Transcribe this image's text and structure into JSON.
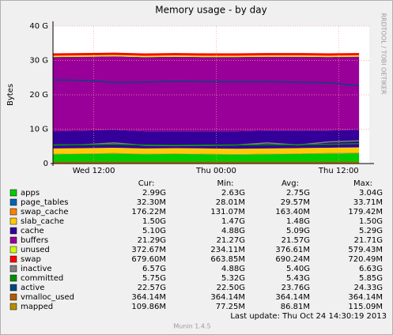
{
  "chart_data": {
    "type": "area",
    "title": "Memory usage - by day",
    "ylabel": "Bytes",
    "side_text": "RRDTOOL / TOBI OETIKER",
    "footer": "Last update:  Thu Oct 24 14:30:19 2013",
    "version": "Munin 1.4.5",
    "x": [
      0,
      3,
      6,
      9,
      12,
      15,
      18,
      21,
      24,
      27,
      30
    ],
    "xlim": [
      0,
      31
    ],
    "xticks": [
      {
        "value": 4,
        "label": "Wed 12:00"
      },
      {
        "value": 16,
        "label": "Thu 00:00"
      },
      {
        "value": 28,
        "label": "Thu 12:00"
      }
    ],
    "ylim": [
      0,
      40
    ],
    "yticks": [
      0,
      {
        "value": 10,
        "label": "10 G"
      },
      {
        "value": 20,
        "label": "20 G"
      },
      {
        "value": 30,
        "label": "30 G"
      },
      {
        "value": 40,
        "label": "40 G"
      }
    ],
    "grid": true,
    "series": [
      {
        "name": "apps",
        "color": "#00cc00",
        "stack": true,
        "values": [
          2.7,
          2.8,
          2.9,
          2.7,
          2.8,
          2.7,
          2.6,
          2.7,
          2.8,
          2.9,
          3.0
        ]
      },
      {
        "name": "page_tables",
        "color": "#0066b3",
        "stack": true,
        "values": [
          0.03,
          0.03,
          0.03,
          0.03,
          0.03,
          0.03,
          0.03,
          0.03,
          0.03,
          0.03,
          0.03
        ]
      },
      {
        "name": "swap_cache",
        "color": "#ff8000",
        "stack": true,
        "values": [
          0.17,
          0.16,
          0.17,
          0.16,
          0.16,
          0.17,
          0.17,
          0.16,
          0.16,
          0.17,
          0.18
        ]
      },
      {
        "name": "slab_cache",
        "color": "#ffcc00",
        "stack": true,
        "values": [
          1.5,
          1.5,
          1.5,
          1.5,
          1.5,
          1.5,
          1.5,
          1.5,
          1.5,
          1.5,
          1.5
        ]
      },
      {
        "name": "cache",
        "color": "#330099",
        "stack": true,
        "values": [
          5.0,
          5.1,
          5.2,
          5.0,
          4.9,
          5.0,
          5.1,
          5.2,
          5.1,
          5.0,
          5.1
        ]
      },
      {
        "name": "buffers",
        "color": "#990099",
        "stack": true,
        "values": [
          21.6,
          21.5,
          21.4,
          21.6,
          21.7,
          21.6,
          21.6,
          21.5,
          21.5,
          21.4,
          21.3
        ]
      },
      {
        "name": "unused",
        "color": "#ccff00",
        "stack": true,
        "values": [
          0.37,
          0.38,
          0.37,
          0.36,
          0.37,
          0.38,
          0.37,
          0.37,
          0.38,
          0.37,
          0.37
        ]
      },
      {
        "name": "swap",
        "color": "#ff0000",
        "stack": true,
        "values": [
          0.69,
          0.69,
          0.69,
          0.69,
          0.69,
          0.69,
          0.69,
          0.69,
          0.69,
          0.69,
          0.68
        ]
      },
      {
        "name": "inactive",
        "color": "#808080",
        "stack": false,
        "values": [
          5.4,
          5.5,
          6.0,
          5.3,
          5.2,
          5.3,
          5.4,
          6.0,
          5.4,
          6.3,
          6.6
        ]
      },
      {
        "name": "committed",
        "color": "#008f00",
        "stack": false,
        "values": [
          5.4,
          5.5,
          5.6,
          5.4,
          5.3,
          5.4,
          5.4,
          5.5,
          5.5,
          5.6,
          5.8
        ]
      },
      {
        "name": "active",
        "color": "#00487d",
        "stack": false,
        "values": [
          24.3,
          24.2,
          23.6,
          23.7,
          23.9,
          23.8,
          23.8,
          23.8,
          23.7,
          23.5,
          22.6
        ]
      },
      {
        "name": "vmalloc_used",
        "color": "#b35a00",
        "stack": false,
        "values": [
          0.36,
          0.36,
          0.36,
          0.36,
          0.36,
          0.36,
          0.36,
          0.36,
          0.36,
          0.36,
          0.36
        ]
      },
      {
        "name": "mapped",
        "color": "#b38f00",
        "stack": false,
        "values": [
          0.08,
          0.08,
          0.09,
          0.08,
          0.08,
          0.09,
          0.09,
          0.09,
          0.08,
          0.09,
          0.11
        ]
      }
    ],
    "legend_table": {
      "headers": [
        "Cur:",
        "Min:",
        "Avg:",
        "Max:"
      ],
      "rows": [
        [
          "2.99G",
          "2.63G",
          "2.75G",
          "3.04G"
        ],
        [
          "32.30M",
          "28.01M",
          "29.57M",
          "33.71M"
        ],
        [
          "176.22M",
          "131.07M",
          "163.40M",
          "179.42M"
        ],
        [
          "1.50G",
          "1.47G",
          "1.48G",
          "1.50G"
        ],
        [
          "5.10G",
          "4.88G",
          "5.09G",
          "5.29G"
        ],
        [
          "21.29G",
          "21.27G",
          "21.57G",
          "21.71G"
        ],
        [
          "372.67M",
          "234.11M",
          "376.61M",
          "579.43M"
        ],
        [
          "679.60M",
          "663.85M",
          "690.24M",
          "720.49M"
        ],
        [
          "6.57G",
          "4.88G",
          "5.40G",
          "6.63G"
        ],
        [
          "5.75G",
          "5.32G",
          "5.43G",
          "5.85G"
        ],
        [
          "22.57G",
          "22.50G",
          "23.76G",
          "24.33G"
        ],
        [
          "364.14M",
          "364.14M",
          "364.14M",
          "364.14M"
        ],
        [
          "109.86M",
          "77.25M",
          "86.81M",
          "115.09M"
        ]
      ]
    }
  }
}
